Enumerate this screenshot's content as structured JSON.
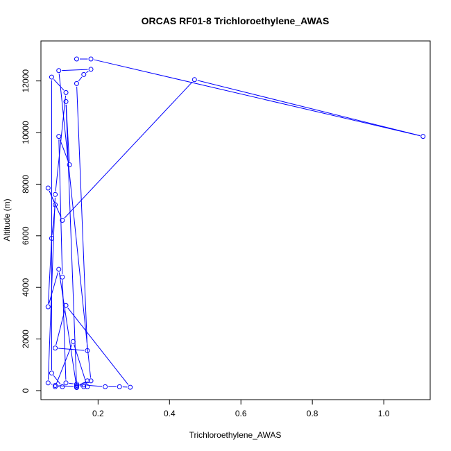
{
  "chart_data": {
    "type": "line",
    "title": "ORCAS RF01-8 Trichloroethylene_AWAS",
    "xlabel": "Trichloroethylene_AWAS",
    "ylabel": "Altitude (m)",
    "xlim": [
      0.04,
      1.13
    ],
    "ylim": [
      -350,
      13550
    ],
    "x_ticks": [
      0.2,
      0.4,
      0.6,
      0.8,
      1.0
    ],
    "x_tick_labels": [
      "0.2",
      "0.4",
      "0.6",
      "0.8",
      "1.0"
    ],
    "y_ticks": [
      0,
      2000,
      4000,
      6000,
      8000,
      10000,
      12000
    ],
    "y_tick_labels": [
      "0",
      "2000",
      "4000",
      "6000",
      "8000",
      "10000",
      "12000"
    ],
    "grid": false,
    "series": [
      {
        "color": "#0000ff",
        "marker": "open-circle",
        "x": [
          0.14,
          0.18,
          1.11,
          0.47,
          0.1,
          0.06,
          0.08,
          0.07,
          0.06,
          0.09,
          0.14,
          0.14,
          0.18,
          0.09,
          0.18,
          0.16,
          0.14,
          0.17,
          0.08,
          0.11,
          0.29,
          0.26,
          0.22,
          0.16,
          0.17,
          0.13,
          0.08,
          0.1,
          0.07,
          0.07,
          0.11,
          0.08,
          0.06,
          0.08,
          0.14,
          0.11,
          0.12,
          0.09,
          0.1,
          0.11,
          0.14,
          0.16,
          0.14,
          0.17
        ],
        "y": [
          12850,
          12850,
          9850,
          12050,
          6600,
          7850,
          7200,
          5900,
          3250,
          4700,
          120,
          200,
          380,
          12400,
          12450,
          12250,
          11900,
          1550,
          1650,
          3300,
          130,
          150,
          150,
          220,
          150,
          1900,
          150,
          150,
          680,
          12150,
          11550,
          7600,
          300,
          200,
          150,
          11200,
          8750,
          9850,
          4400,
          300,
          250,
          150,
          150,
          380
        ]
      }
    ]
  }
}
